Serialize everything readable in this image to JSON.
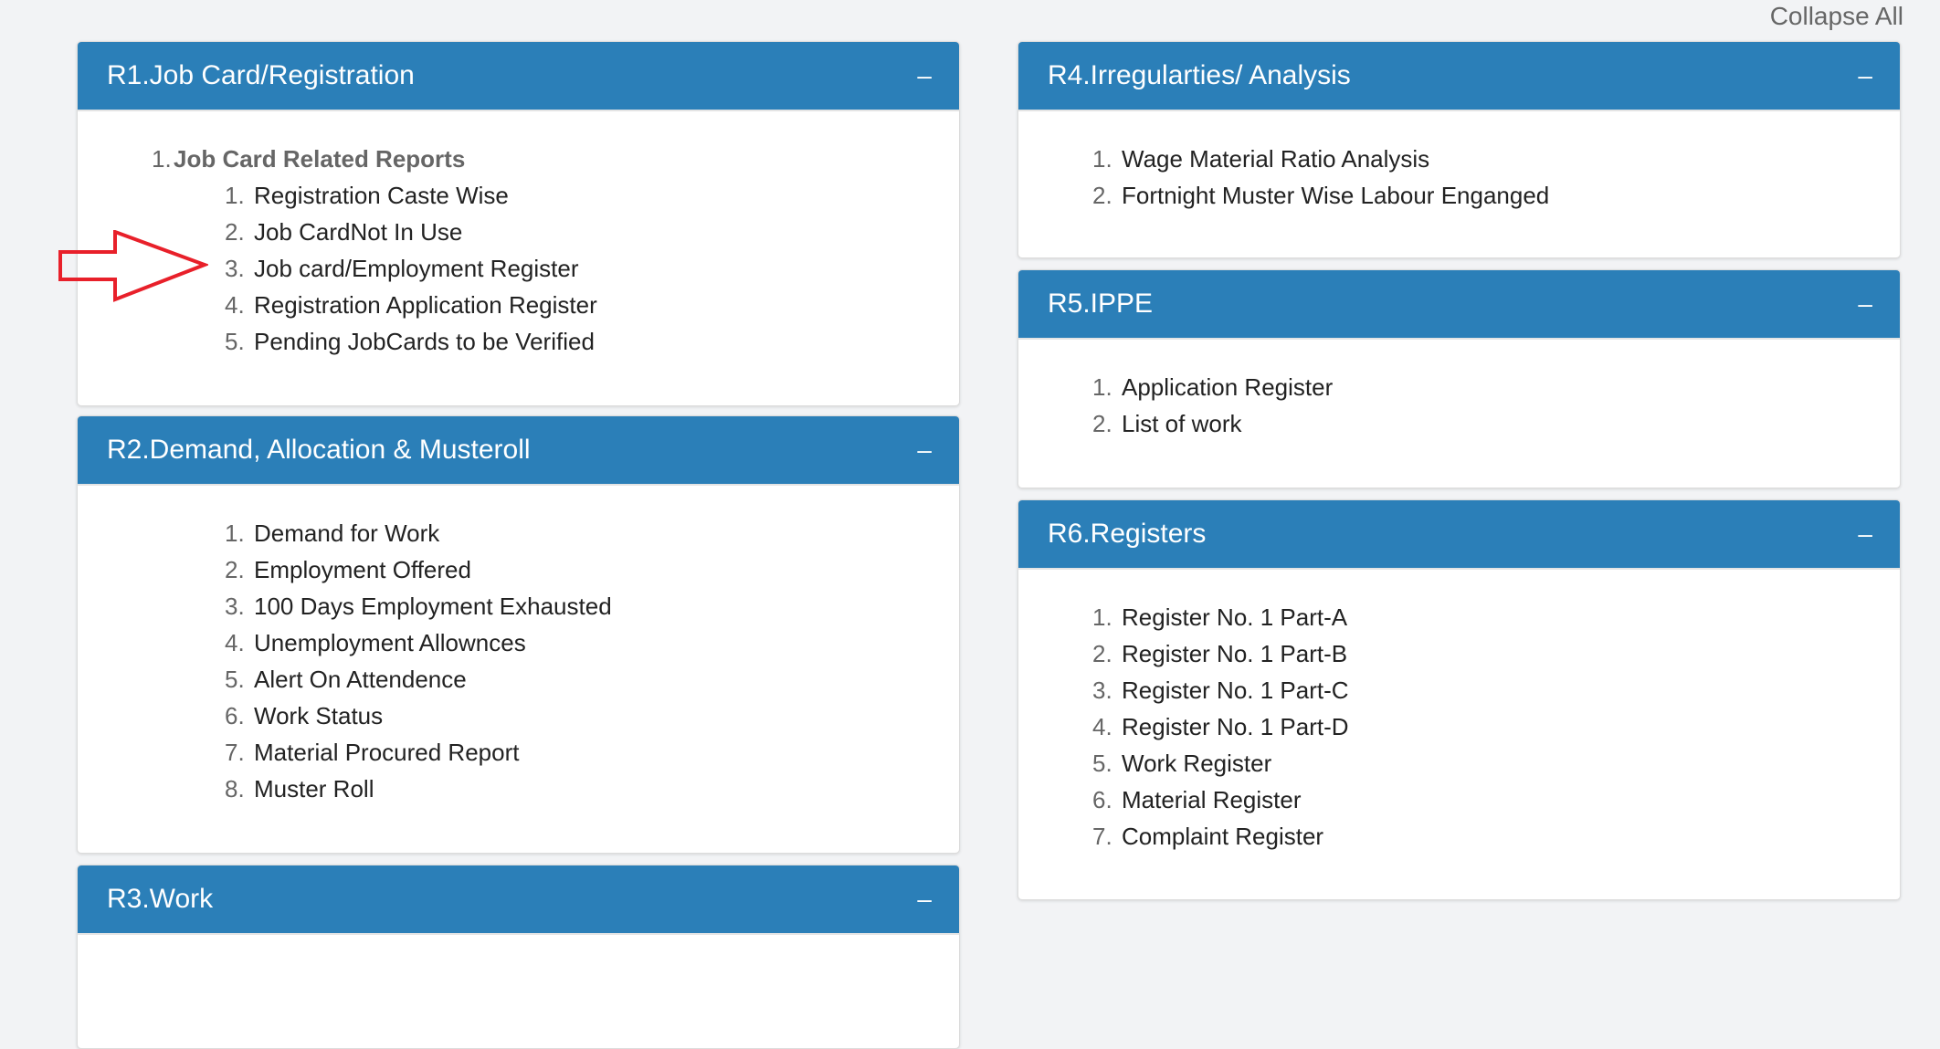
{
  "header": {
    "collapse_all_label": "Collapse All"
  },
  "colors": {
    "panel_header": "#2b7fb8",
    "annotation_arrow": "#e8202a"
  },
  "panels": [
    {
      "title": "R1.Job Card/Registration",
      "toggle_icon": "minus-icon",
      "group": {
        "number": "1.",
        "label": "Job Card Related Reports"
      },
      "items": [
        "Registration Caste Wise",
        "Job CardNot In Use",
        "Job card/Employment Register",
        "Registration Application Register",
        "Pending JobCards to be Verified"
      ]
    },
    {
      "title": "R2.Demand, Allocation & Musteroll",
      "toggle_icon": "minus-icon",
      "items": [
        "Demand for Work",
        "Employment Offered",
        "100 Days Employment Exhausted",
        "Unemployment Allownces",
        "Alert On Attendence",
        "Work Status",
        "Material Procured Report",
        "Muster Roll"
      ]
    },
    {
      "title": "R3.Work",
      "toggle_icon": "minus-icon",
      "items": []
    },
    {
      "title": "R4.Irregularties/ Analysis",
      "toggle_icon": "minus-icon",
      "items": [
        "Wage Material Ratio Analysis",
        "Fortnight Muster Wise Labour Enganged"
      ]
    },
    {
      "title": "R5.IPPE",
      "toggle_icon": "minus-icon",
      "items": [
        "Application Register",
        "List of work"
      ]
    },
    {
      "title": "R6.Registers",
      "toggle_icon": "minus-icon",
      "items": [
        "Register No. 1 Part-A",
        "Register No. 1 Part-B",
        "Register No. 1 Part-C",
        "Register No. 1 Part-D",
        "Work Register",
        "Material Register",
        "Complaint Register"
      ]
    }
  ]
}
